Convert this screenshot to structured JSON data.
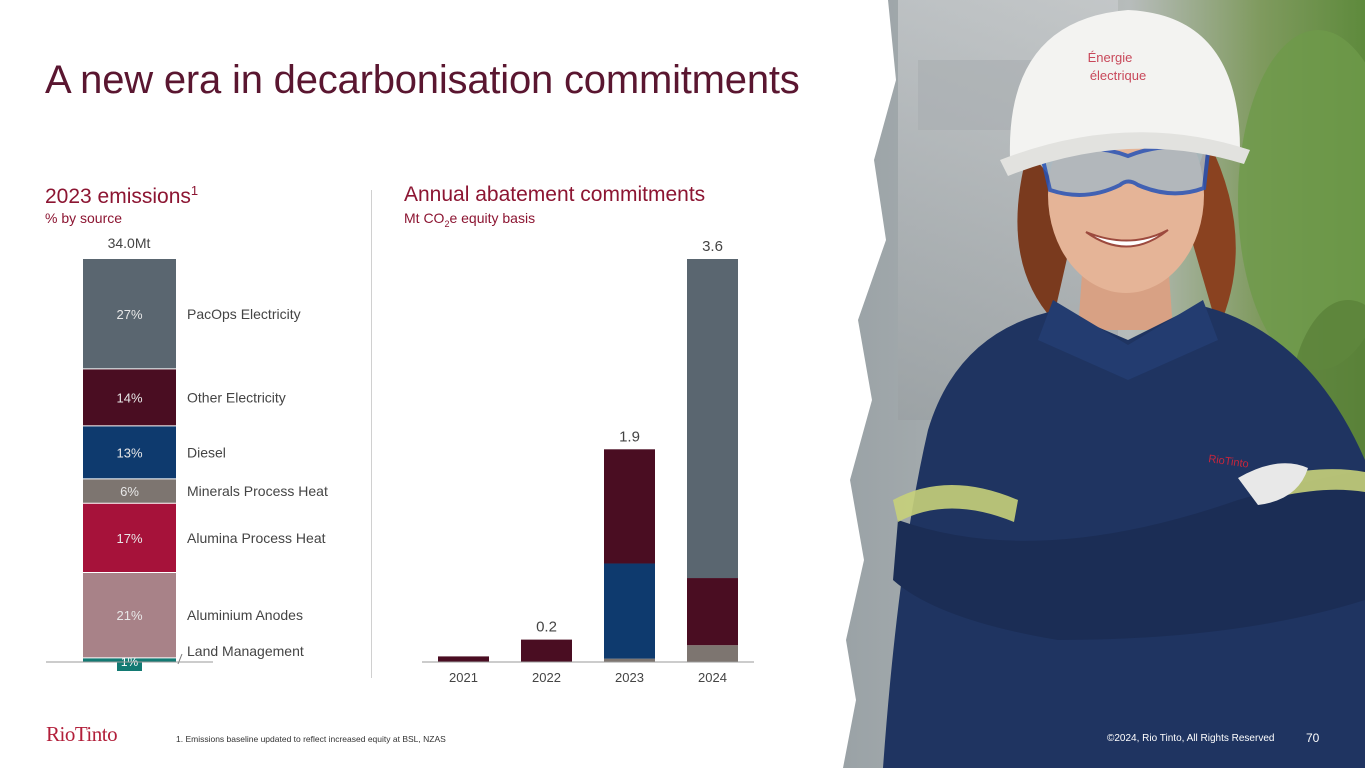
{
  "slide": {
    "title": "A new era in decarbonisation commitments",
    "footnote": "1. Emissions baseline updated to reflect increased equity at BSL, NZAS",
    "copyright": "©2024, Rio Tinto, All Rights Reserved",
    "page_number": "70",
    "logo_text": "RioTinto"
  },
  "left_panel": {
    "title": "2023 emissions",
    "title_superscript": "1",
    "subtitle": "% by source"
  },
  "right_panel": {
    "title": "Annual abatement commitments",
    "subtitle_pre": "Mt CO",
    "subtitle_sub": "2",
    "subtitle_post": "e equity basis"
  },
  "photo": {
    "helmet_text_line1": "Énergie",
    "helmet_text_line2": "électrique",
    "jacket_text": "RioTinto"
  },
  "colors": {
    "title": "#5a1630",
    "accent": "#8c1532",
    "pacops": "#5a6670",
    "other_electricity": "#4a0d22",
    "diesel": "#0e3a6e",
    "minerals": "#7d7570",
    "alumina": "#a6123a",
    "anodes": "#a88288",
    "land": "#137a73"
  },
  "chart_data": [
    {
      "type": "bar",
      "stacked": true,
      "title": "2023 emissions",
      "subtitle": "% by source",
      "total_label": "34.0Mt",
      "unit": "%",
      "segments": [
        {
          "name": "Land Management",
          "value": 1,
          "label": "1%",
          "color": "#137a73"
        },
        {
          "name": "Aluminium Anodes",
          "value": 21,
          "label": "21%",
          "color": "#a88288"
        },
        {
          "name": "Alumina Process Heat",
          "value": 17,
          "label": "17%",
          "color": "#a6123a"
        },
        {
          "name": "Minerals Process Heat",
          "value": 6,
          "label": "6%",
          "color": "#7d7570"
        },
        {
          "name": "Diesel",
          "value": 13,
          "label": "13%",
          "color": "#0e3a6e"
        },
        {
          "name": "Other Electricity",
          "value": 14,
          "label": "14%",
          "color": "#4a0d22"
        },
        {
          "name": "PacOps Electricity",
          "value": 27,
          "label": "27%",
          "color": "#5a6670"
        }
      ]
    },
    {
      "type": "bar",
      "stacked": true,
      "title": "Annual abatement commitments",
      "subtitle": "Mt CO2e equity basis",
      "categories": [
        "2021",
        "2022",
        "2023",
        "2024"
      ],
      "totals": [
        0.05,
        0.2,
        1.9,
        3.6
      ],
      "total_labels": [
        "",
        "0.2",
        "1.9",
        "3.6"
      ],
      "ylim": [
        0,
        3.6
      ],
      "stacks": [
        [
          {
            "value": 0.05,
            "color": "#4a0d22"
          }
        ],
        [
          {
            "value": 0.2,
            "color": "#4a0d22"
          }
        ],
        [
          {
            "value": 0.03,
            "color": "#7d7570"
          },
          {
            "value": 0.85,
            "color": "#0e3a6e"
          },
          {
            "value": 1.02,
            "color": "#4a0d22"
          }
        ],
        [
          {
            "value": 0.15,
            "color": "#7d7570"
          },
          {
            "value": 0.6,
            "color": "#4a0d22"
          },
          {
            "value": 2.85,
            "color": "#5a6670"
          }
        ]
      ]
    }
  ]
}
